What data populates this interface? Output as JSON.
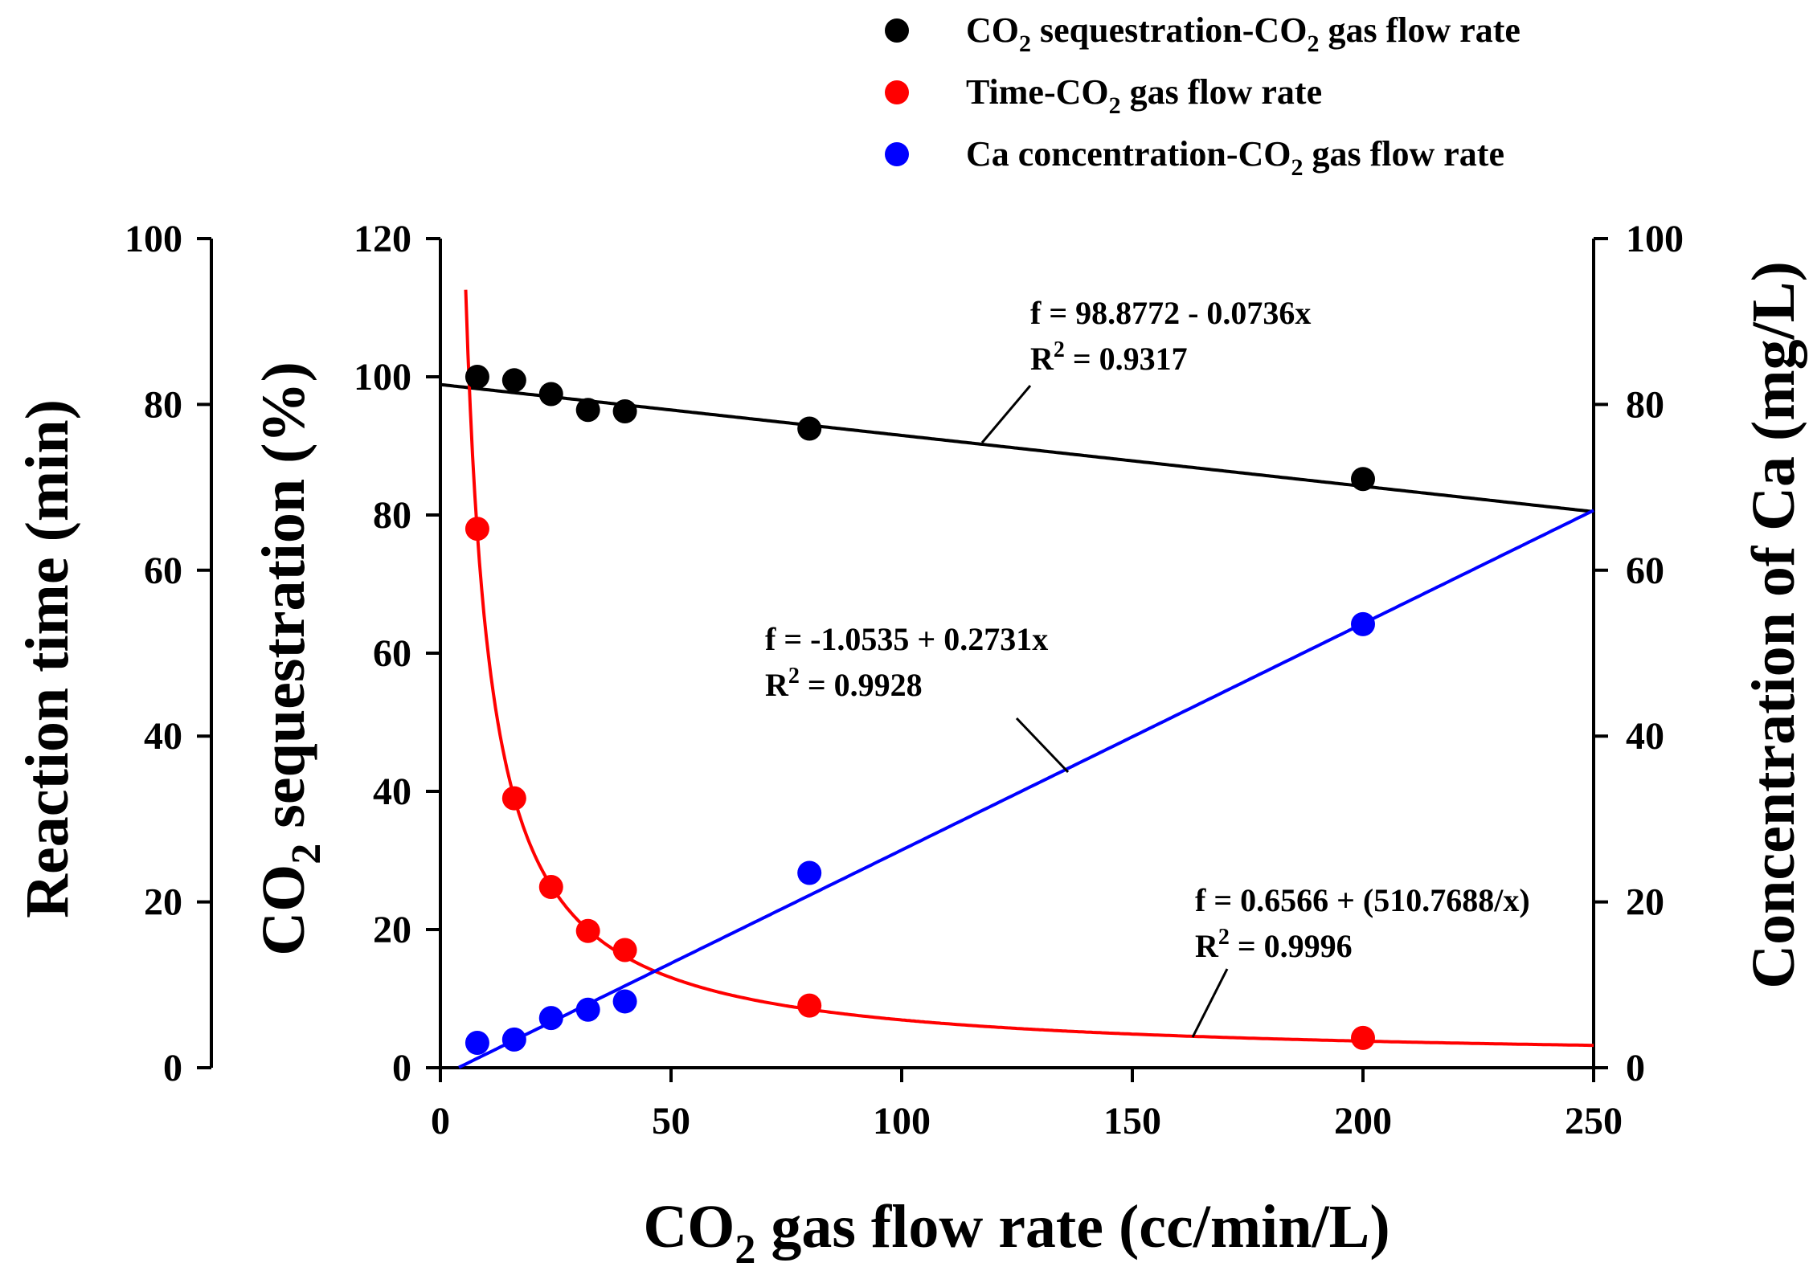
{
  "chart_data": {
    "type": "scatter",
    "x_axis": {
      "label_prefix": "CO",
      "label_sub": "2",
      "label_suffix": " gas flow rate (cc/min/L)",
      "range": [
        0,
        250
      ],
      "ticks": [
        "0",
        "50",
        "100",
        "150",
        "200",
        "250"
      ]
    },
    "y_axes": {
      "sequestration": {
        "label_prefix": "CO",
        "label_sub": "2",
        "label_suffix": " sequestration (%)",
        "range": [
          0,
          120
        ],
        "ticks": [
          "0",
          "20",
          "40",
          "60",
          "80",
          "100",
          "120"
        ]
      },
      "time": {
        "label": "Reaction time (min)",
        "range": [
          0,
          100
        ],
        "ticks": [
          "0",
          "20",
          "40",
          "60",
          "80",
          "100"
        ]
      },
      "calcium": {
        "label": "Concentration of Ca (mg/L)",
        "range": [
          0,
          100
        ],
        "ticks": [
          "0",
          "20",
          "40",
          "60",
          "80",
          "100"
        ]
      }
    },
    "series": [
      {
        "name": "CO2 sequestration-CO2 gas flow rate",
        "legend": {
          "prefix": "CO",
          "sub1": "2",
          "mid": " sequestration-CO",
          "sub2": "2",
          "suffix": " gas flow rate"
        },
        "color": "#000000",
        "axis": "sequestration",
        "x": [
          8,
          16,
          24,
          32,
          40,
          80,
          200
        ],
        "y": [
          100,
          99.5,
          97.5,
          95.2,
          95,
          92.5,
          85.2
        ],
        "fit": {
          "kind": "linear",
          "a": 98.8772,
          "b": -0.0736
        },
        "equation": "f = 98.8772 - 0.0736x",
        "r2_prefix": "R",
        "r2_sup": "2",
        "r2_suffix": " = 0.9317"
      },
      {
        "name": "Time-CO2 gas flow rate",
        "legend": {
          "prefix": "Time-CO",
          "sub1": "2",
          "mid": " gas flow rate",
          "sub2": "",
          "suffix": ""
        },
        "color": "#ff0000",
        "axis": "time",
        "x": [
          8,
          16,
          24,
          32,
          40,
          80,
          200
        ],
        "y": [
          65,
          32.5,
          21.8,
          16.5,
          14.2,
          7.5,
          3.6
        ],
        "fit": {
          "kind": "hyperbolic",
          "a": 0.6566,
          "b": 510.7688
        },
        "equation": "f = 0.6566 + (510.7688/x)",
        "r2_prefix": "R",
        "r2_sup": "2",
        "r2_suffix": " = 0.9996"
      },
      {
        "name": "Ca concentration-CO2 gas flow rate",
        "legend": {
          "prefix": "Ca concentration-CO",
          "sub1": "2",
          "mid": " gas flow rate",
          "sub2": "",
          "suffix": ""
        },
        "color": "#0000ff",
        "axis": "calcium",
        "x": [
          8,
          16,
          24,
          32,
          40,
          80,
          200
        ],
        "y": [
          3,
          3.4,
          6,
          7,
          8,
          23.5,
          53.5
        ],
        "fit": {
          "kind": "linear",
          "a": -1.0535,
          "b": 0.2731
        },
        "equation": "f = -1.0535 + 0.2731x",
        "r2_prefix": "R",
        "r2_sup": "2",
        "r2_suffix": " = 0.9928"
      }
    ]
  }
}
